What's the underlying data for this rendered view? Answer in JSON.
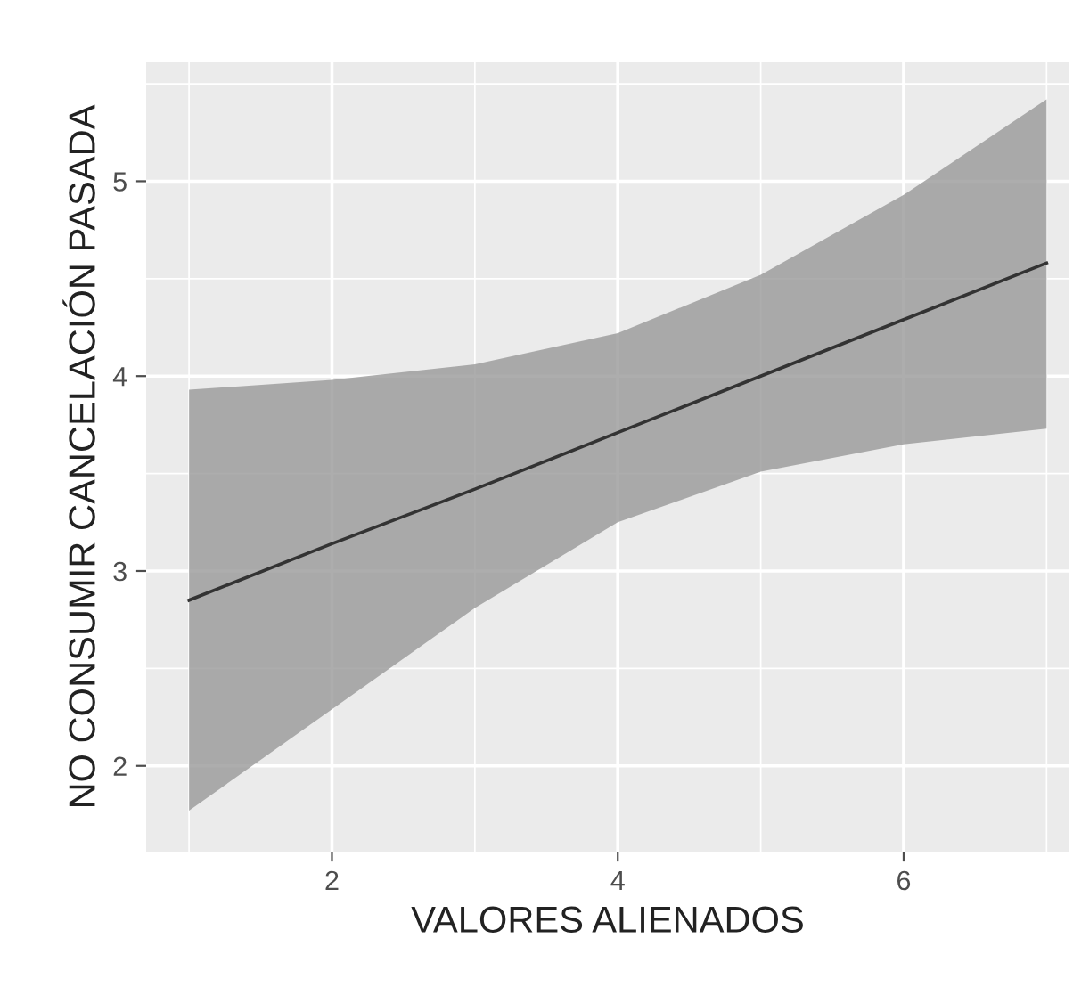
{
  "chart_data": {
    "type": "line",
    "xlabel": "VALORES ALIENADOS",
    "ylabel": "NO CONSUMIR CANCELACIÓN PASADA",
    "x": [
      1,
      2,
      3,
      4,
      5,
      6,
      7
    ],
    "series": [
      {
        "color": "#333333",
        "values": [
          2.85,
          3.14,
          3.42,
          3.71,
          4.0,
          4.29,
          4.58
        ],
        "lower": [
          1.77,
          2.29,
          2.81,
          3.25,
          3.51,
          3.65,
          3.73
        ],
        "upper": [
          3.93,
          3.98,
          4.06,
          4.22,
          4.52,
          4.93,
          5.42
        ]
      }
    ],
    "xlim": [
      0.7,
      7.16
    ],
    "ylim": [
      1.56,
      5.61
    ],
    "xticks": [
      2,
      4,
      6
    ],
    "yticks": [
      2,
      3,
      4,
      5
    ],
    "grid": true,
    "marker": "none",
    "line_style": "solid"
  }
}
